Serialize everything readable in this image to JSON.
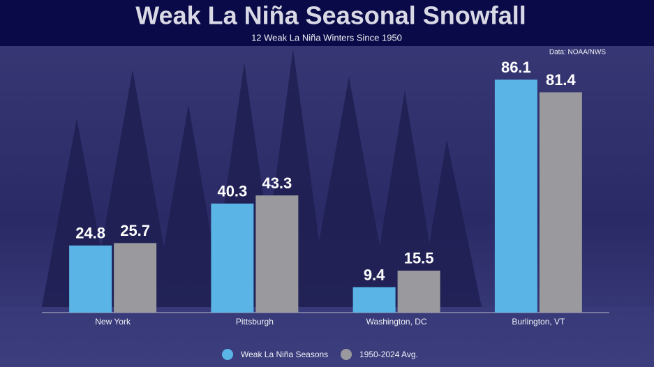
{
  "chart_data": {
    "type": "bar",
    "title": "Weak La Niña Seasonal Snowfall",
    "subtitle": "12 Weak La Niña Winters Since 1950",
    "source": "Data: NOAA/NWS",
    "categories": [
      "New York",
      "Pittsburgh",
      "Washington, DC",
      "Burlington, VT"
    ],
    "series": [
      {
        "name": "Weak La Niña Seasons",
        "color": "#5ab4e6",
        "values": [
          24.8,
          40.3,
          9.4,
          86.1
        ]
      },
      {
        "name": "1950-2024 Avg.",
        "color": "#9a9a9e",
        "values": [
          25.7,
          43.3,
          15.5,
          81.4
        ]
      }
    ],
    "ylim": [
      0,
      90
    ]
  }
}
